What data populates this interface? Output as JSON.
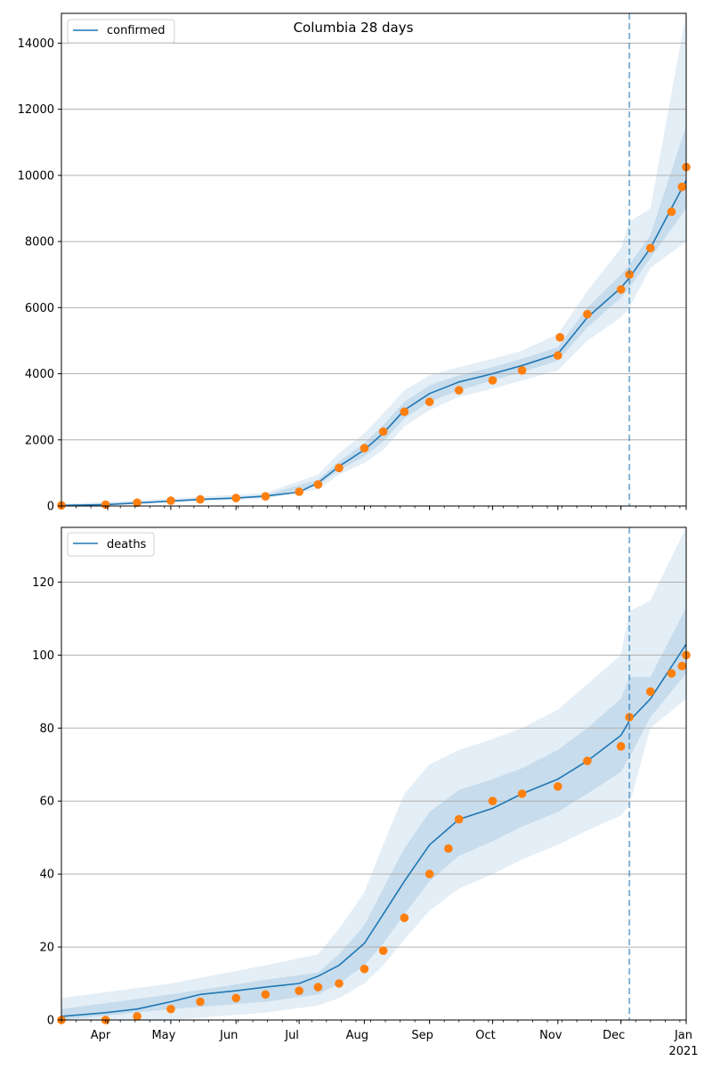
{
  "figure": {
    "title": "Columbia 28 days",
    "x_tick_labels": [
      "Apr",
      "May",
      "Jun",
      "Jul",
      "Aug",
      "Sep",
      "Oct",
      "Nov",
      "Dec",
      "Jan"
    ],
    "x_year_label": "2021",
    "vline_date": "2020-12-05"
  },
  "colors": {
    "model_line": "#1f77b4",
    "band": "#1f77b4",
    "observed": "#ff7f0e",
    "grid": "#b0b0b0",
    "vline": "#1f77b4"
  },
  "chart_data": [
    {
      "type": "line",
      "title": "Columbia 28 days",
      "legend": "confirmed",
      "legend_position": "top-left",
      "grid": "horizontal",
      "xlim": [
        "2020-03-10",
        "2021-01-01"
      ],
      "ylim": [
        0,
        14900
      ],
      "y_ticks": [
        0,
        2000,
        4000,
        6000,
        8000,
        10000,
        12000,
        14000
      ],
      "series": [
        {
          "name": "confirmed",
          "style": "line",
          "x": [
            "2020-03-10",
            "2020-03-31",
            "2020-04-15",
            "2020-05-01",
            "2020-05-15",
            "2020-06-01",
            "2020-06-15",
            "2020-07-01",
            "2020-07-10",
            "2020-07-20",
            "2020-08-01",
            "2020-08-10",
            "2020-08-20",
            "2020-09-01",
            "2020-09-15",
            "2020-10-01",
            "2020-10-15",
            "2020-11-01",
            "2020-11-15",
            "2020-12-01",
            "2020-12-05",
            "2020-12-15",
            "2021-01-01"
          ],
          "y": [
            20,
            40,
            90,
            150,
            200,
            240,
            300,
            420,
            700,
            1200,
            1700,
            2200,
            2900,
            3400,
            3750,
            4000,
            4250,
            4600,
            5700,
            6600,
            6900,
            7800,
            9850
          ]
        },
        {
          "name": "band_outer",
          "style": "band",
          "x": [
            "2020-03-10",
            "2020-05-01",
            "2020-06-15",
            "2020-07-10",
            "2020-07-20",
            "2020-08-01",
            "2020-08-10",
            "2020-08-20",
            "2020-09-01",
            "2020-09-15",
            "2020-10-01",
            "2020-10-15",
            "2020-11-01",
            "2020-11-15",
            "2020-12-01",
            "2020-12-05",
            "2020-12-15",
            "2021-01-01"
          ],
          "lower": [
            0,
            100,
            230,
            500,
            950,
            1300,
            1700,
            2400,
            2900,
            3300,
            3550,
            3800,
            4100,
            5000,
            5700,
            6000,
            7200,
            8000
          ],
          "upper": [
            60,
            220,
            400,
            950,
            1600,
            2200,
            2800,
            3500,
            3950,
            4200,
            4450,
            4700,
            5200,
            6500,
            7800,
            8600,
            9000,
            14900
          ]
        },
        {
          "name": "band_inner",
          "style": "band",
          "x": [
            "2020-03-10",
            "2020-05-01",
            "2020-06-15",
            "2020-07-10",
            "2020-07-20",
            "2020-08-01",
            "2020-08-10",
            "2020-08-20",
            "2020-09-01",
            "2020-09-15",
            "2020-10-01",
            "2020-10-15",
            "2020-11-01",
            "2020-11-15",
            "2020-12-01",
            "2020-12-05",
            "2020-12-15",
            "2021-01-01"
          ],
          "lower": [
            10,
            130,
            270,
            620,
            1080,
            1500,
            1950,
            2650,
            3150,
            3500,
            3800,
            4050,
            4400,
            5400,
            6300,
            6600,
            7500,
            9000
          ],
          "upper": [
            30,
            170,
            330,
            800,
            1350,
            1900,
            2450,
            3150,
            3650,
            3950,
            4200,
            4450,
            4800,
            6000,
            7000,
            7300,
            8200,
            11500
          ]
        },
        {
          "name": "observed",
          "style": "markers",
          "x": [
            "2020-03-10",
            "2020-03-31",
            "2020-04-15",
            "2020-05-01",
            "2020-05-15",
            "2020-06-01",
            "2020-06-15",
            "2020-07-01",
            "2020-07-10",
            "2020-07-20",
            "2020-08-01",
            "2020-08-10",
            "2020-08-20",
            "2020-09-01",
            "2020-09-15",
            "2020-10-01",
            "2020-10-15",
            "2020-11-01",
            "2020-11-02",
            "2020-11-15",
            "2020-12-01",
            "2020-12-05",
            "2020-12-15",
            "2020-12-25",
            "2020-12-30",
            "2021-01-01"
          ],
          "y": [
            20,
            40,
            100,
            160,
            200,
            240,
            290,
            430,
            650,
            1150,
            1750,
            2250,
            2850,
            3150,
            3500,
            3800,
            4100,
            4550,
            5100,
            5800,
            6550,
            7000,
            7800,
            8900,
            9650,
            10250
          ]
        }
      ]
    },
    {
      "type": "line",
      "legend": "deaths",
      "legend_position": "top-left",
      "grid": "horizontal",
      "xlim": [
        "2020-03-10",
        "2021-01-01"
      ],
      "ylim": [
        0,
        135
      ],
      "y_ticks": [
        0,
        20,
        40,
        60,
        80,
        100,
        120
      ],
      "series": [
        {
          "name": "deaths",
          "style": "line",
          "x": [
            "2020-03-10",
            "2020-03-31",
            "2020-04-15",
            "2020-05-01",
            "2020-05-15",
            "2020-06-01",
            "2020-06-15",
            "2020-07-01",
            "2020-07-10",
            "2020-07-20",
            "2020-08-01",
            "2020-08-10",
            "2020-08-20",
            "2020-09-01",
            "2020-09-15",
            "2020-10-01",
            "2020-10-15",
            "2020-11-01",
            "2020-11-15",
            "2020-12-01",
            "2020-12-05",
            "2020-12-15",
            "2021-01-01"
          ],
          "y": [
            1,
            2,
            3,
            5,
            7,
            8,
            9,
            10,
            12,
            15,
            21,
            29,
            38,
            48,
            55,
            58,
            62,
            66,
            71,
            78,
            82,
            88,
            103
          ]
        },
        {
          "name": "band_outer",
          "style": "band",
          "x": [
            "2020-03-10",
            "2020-05-01",
            "2020-06-15",
            "2020-07-10",
            "2020-07-20",
            "2020-08-01",
            "2020-08-10",
            "2020-08-20",
            "2020-09-01",
            "2020-09-15",
            "2020-10-01",
            "2020-10-15",
            "2020-11-01",
            "2020-11-15",
            "2020-12-01",
            "2020-12-05",
            "2020-12-15",
            "2021-01-01"
          ],
          "lower": [
            0,
            0,
            2,
            4,
            6,
            10,
            15,
            22,
            30,
            36,
            40,
            44,
            48,
            52,
            56,
            59,
            80,
            88
          ],
          "upper": [
            6,
            10,
            15,
            18,
            25,
            35,
            48,
            62,
            70,
            74,
            77,
            80,
            85,
            92,
            100,
            112,
            115,
            135
          ]
        },
        {
          "name": "band_inner",
          "style": "band",
          "x": [
            "2020-03-10",
            "2020-05-01",
            "2020-06-15",
            "2020-07-10",
            "2020-07-20",
            "2020-08-01",
            "2020-08-10",
            "2020-08-20",
            "2020-09-01",
            "2020-09-15",
            "2020-10-01",
            "2020-10-15",
            "2020-11-01",
            "2020-11-15",
            "2020-12-01",
            "2020-12-05",
            "2020-12-15",
            "2021-01-01"
          ],
          "lower": [
            0,
            3,
            5,
            7,
            10,
            15,
            21,
            29,
            38,
            45,
            49,
            53,
            57,
            62,
            68,
            72,
            83,
            95
          ],
          "upper": [
            3,
            7,
            11,
            13,
            18,
            26,
            36,
            47,
            57,
            63,
            66,
            69,
            74,
            80,
            88,
            94,
            94,
            113
          ]
        },
        {
          "name": "observed",
          "style": "markers",
          "x": [
            "2020-03-10",
            "2020-03-31",
            "2020-04-15",
            "2020-05-01",
            "2020-05-15",
            "2020-06-01",
            "2020-06-15",
            "2020-07-01",
            "2020-07-10",
            "2020-07-20",
            "2020-08-01",
            "2020-08-10",
            "2020-08-20",
            "2020-09-01",
            "2020-09-10",
            "2020-09-15",
            "2020-10-01",
            "2020-10-15",
            "2020-11-01",
            "2020-11-15",
            "2020-12-01",
            "2020-12-05",
            "2020-12-15",
            "2020-12-25",
            "2020-12-30",
            "2021-01-01"
          ],
          "y": [
            0,
            0,
            1,
            3,
            5,
            6,
            7,
            8,
            9,
            10,
            14,
            19,
            28,
            40,
            47,
            55,
            60,
            62,
            64,
            71,
            75,
            83,
            90,
            95,
            97,
            100
          ]
        }
      ]
    }
  ]
}
